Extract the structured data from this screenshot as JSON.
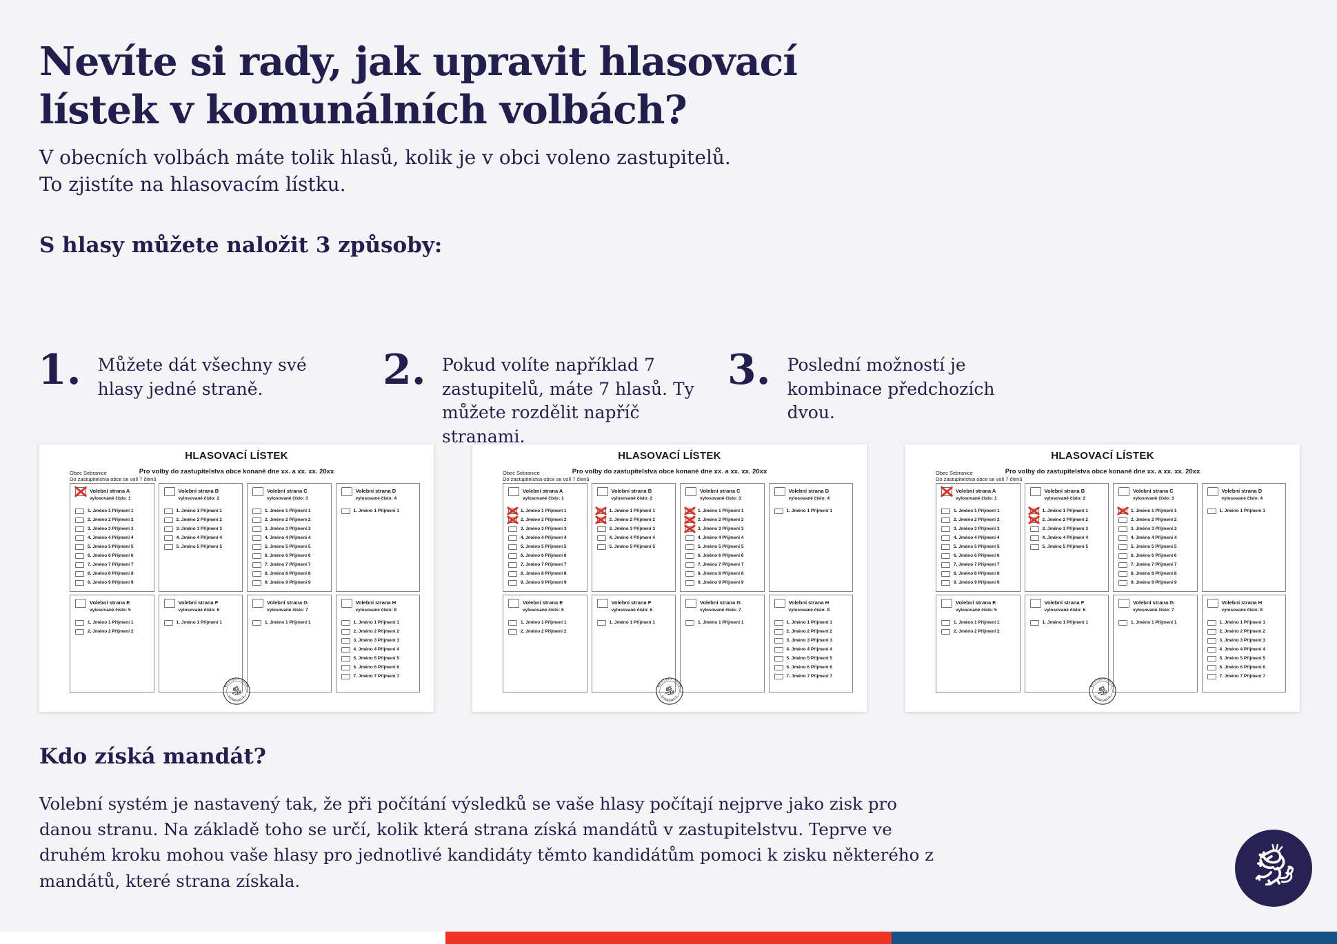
{
  "page": {
    "title_line1": "Nevíte si rady, jak upravit hlasovací",
    "title_line2": "lístek v komunálních volbách?",
    "subtitle_line1": "V obecních volbách máte tolik hlasů, kolik je v obci voleno zastupitelů.",
    "subtitle_line2": "To zjistíte na hlasovacím lístku.",
    "section_heading": "S hlasy můžete naložit 3 způsoby:",
    "mandate_heading": "Kdo získá mandát?",
    "mandate_text": "Volební systém je nastavený tak, že při počítání výsledků se vaše hlasy počítají nejprve jako zisk pro danou stranu. Na základě toho se určí, kolik která strana získá mandátů v zastupitelstvu. Teprve ve druhém kroku mohou vaše hlasy pro jednotlivé kandidáty těmto kandidátům pomoci k zisku některého z mandátů, které strana získala."
  },
  "steps": [
    {
      "number": "1.",
      "text": "Můžete dát všechny své hlasy jedné straně."
    },
    {
      "number": "2.",
      "text": "Pokud volíte například 7 zastupitelů, máte 7 hlasů. Ty můžete rozdělit napříč stranami."
    },
    {
      "number": "3.",
      "text": "Poslední možností je kombinace předchozích dvou."
    }
  ],
  "ballot": {
    "title": "HLASOVACÍ LÍSTEK",
    "subtitle": "Pro volby do zastupitelstva obce konané dne xx. a xx. xx. 20xx",
    "municipality": "Obec Sebranice",
    "council_note": "Do zastupitelstva obce se volí 7 členů",
    "stamp_top": "MĚSTSKÝ ÚŘAD",
    "stamp_bottom": "SEBRANICE",
    "parties": [
      {
        "id": "A",
        "name": "Volební strana A",
        "drawn_number": "vylosované číslo: 1",
        "candidates": [
          "1.  Jméno 1 Příjmení 1",
          "2.  Jméno 2 Příjmení 2",
          "3.  Jméno 3 Příjmení 3",
          "4.  Jméno 4 Příjmení 4",
          "5.  Jméno 5 Příjmení 5",
          "6.  Jméno 6 Příjmení 6",
          "7.  Jméno 7 Příjmení 7",
          "8.  Jméno 8 Příjmení 8",
          "9.  Jméno 9 Příjmení 9"
        ]
      },
      {
        "id": "B",
        "name": "Volební strana B",
        "drawn_number": "vylosované číslo: 2",
        "candidates": [
          "1.  Jméno 1 Příjmení 1",
          "2.  Jméno 2 Příjmení 2",
          "3.  Jméno 3 Příjmení 3",
          "4.  Jméno 4 Příjmení 4",
          "5.  Jméno 5 Příjmení 5"
        ]
      },
      {
        "id": "C",
        "name": "Volební strana C",
        "drawn_number": "vylosované číslo: 3",
        "candidates": [
          "1.  Jméno 1 Příjmení 1",
          "2.  Jméno 2 Příjmení 2",
          "3.  Jméno 3 Příjmení 3",
          "4.  Jméno 4 Příjmení 4",
          "5.  Jméno 5 Příjmení 5",
          "6.  Jméno 6 Příjmení 6",
          "7.  Jméno 7 Příjmení 7",
          "8.  Jméno 8 Příjmení 8",
          "9.  Jméno 9 Příjmení 9"
        ]
      },
      {
        "id": "D",
        "name": "Volební strana D",
        "drawn_number": "vylosované číslo: 4",
        "candidates": [
          "1.  Jméno 1 Příjmení 1"
        ]
      },
      {
        "id": "E",
        "name": "Volební strana E",
        "drawn_number": "vylosované číslo: 5",
        "candidates": [
          "1.  Jméno 1 Příjmení 1",
          "2.  Jméno 2 Příjmení 2"
        ]
      },
      {
        "id": "F",
        "name": "Volební strana F",
        "drawn_number": "vylosované číslo: 6",
        "candidates": [
          "1.  Jméno 1 Příjmení 1"
        ]
      },
      {
        "id": "G",
        "name": "Volební strana G",
        "drawn_number": "vylosované číslo: 7",
        "candidates": [
          "1.  Jméno 1 Příjmení 1"
        ]
      },
      {
        "id": "H",
        "name": "Volební strana H",
        "drawn_number": "vylosované číslo: 8",
        "candidates": [
          "1.  Jméno 1 Příjmení 1",
          "2.  Jméno 2 Příjmení 2",
          "3.  Jméno 3 Příjmení 3",
          "4.  Jméno 4 Příjmení 4",
          "5.  Jméno 5 Příjmení 5",
          "6.  Jméno 6 Příjmení 6",
          "7.  Jméno 7 Příjmení 7"
        ]
      }
    ]
  },
  "ballots": [
    {
      "label": "ballot-example-1",
      "party_marks": [
        "A"
      ],
      "candidate_marks": {}
    },
    {
      "label": "ballot-example-2",
      "party_marks": [],
      "candidate_marks": {
        "A": [
          1,
          2
        ],
        "B": [
          1,
          2
        ],
        "C": [
          1,
          2,
          3
        ]
      }
    },
    {
      "label": "ballot-example-3",
      "party_marks": [
        "A"
      ],
      "candidate_marks": {
        "B": [
          1,
          2
        ],
        "C": [
          1
        ]
      }
    }
  ],
  "colors": {
    "ink": "#221f4f",
    "mark_red": "#e02f24",
    "bar_red": "#ee3524",
    "bar_blue": "#175084",
    "page_bg": "#f4f4f6",
    "logo_navy": "#272253"
  }
}
